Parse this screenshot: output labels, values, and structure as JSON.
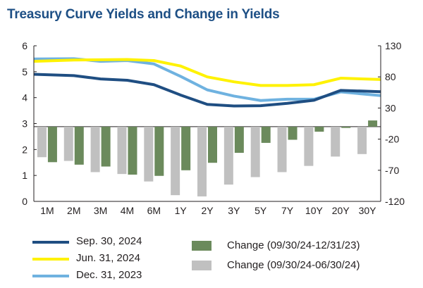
{
  "chart_data": {
    "type": "bar+line",
    "title": "Treasury Curve Yields and Change in Yields",
    "categories": [
      "1M",
      "2M",
      "3M",
      "4M",
      "6M",
      "1Y",
      "2Y",
      "3Y",
      "5Y",
      "7Y",
      "10Y",
      "20Y",
      "30Y"
    ],
    "left_axis": {
      "ylim": [
        0,
        6
      ],
      "ticks": [
        "0",
        "1",
        "2",
        "3",
        "4",
        "5",
        "6"
      ]
    },
    "right_axis": {
      "ylim": [
        -120,
        130
      ],
      "ticks": [
        "-120",
        "-70",
        "-20",
        "30",
        "80",
        "130"
      ]
    },
    "line_series": [
      {
        "name": "Sep. 30, 2024",
        "color": "#1f4e82",
        "axis": "left",
        "values": [
          4.9,
          4.85,
          4.72,
          4.67,
          4.5,
          4.1,
          3.74,
          3.68,
          3.69,
          3.78,
          3.9,
          4.28,
          4.23
        ]
      },
      {
        "name": "Jun. 31, 2024",
        "color": "#fff200",
        "axis": "left",
        "values": [
          5.4,
          5.45,
          5.46,
          5.47,
          5.43,
          5.22,
          4.8,
          4.61,
          4.47,
          4.47,
          4.5,
          4.75,
          4.7
        ]
      },
      {
        "name": "Dec. 31, 2023",
        "color": "#6fb2e0",
        "axis": "left",
        "values": [
          5.49,
          5.5,
          5.4,
          5.43,
          5.3,
          4.82,
          4.3,
          4.06,
          3.89,
          3.94,
          3.94,
          4.22,
          4.08
        ]
      }
    ],
    "bar_series": [
      {
        "name": "Change (09/30/24-12/31/23)",
        "color": "#6b8a5c",
        "axis": "right",
        "values": [
          -57,
          -61,
          -64,
          -77,
          -79,
          -70,
          -58,
          -42,
          -26,
          -21,
          -8,
          -2,
          10
        ]
      },
      {
        "name": "Change (09/30/24-06/30/24)",
        "color": "#c0c0c0",
        "axis": "right",
        "values": [
          -49,
          -55,
          -73,
          -76,
          -88,
          -110,
          -112,
          -93,
          -81,
          -73,
          -63,
          -48,
          -44
        ]
      }
    ]
  }
}
